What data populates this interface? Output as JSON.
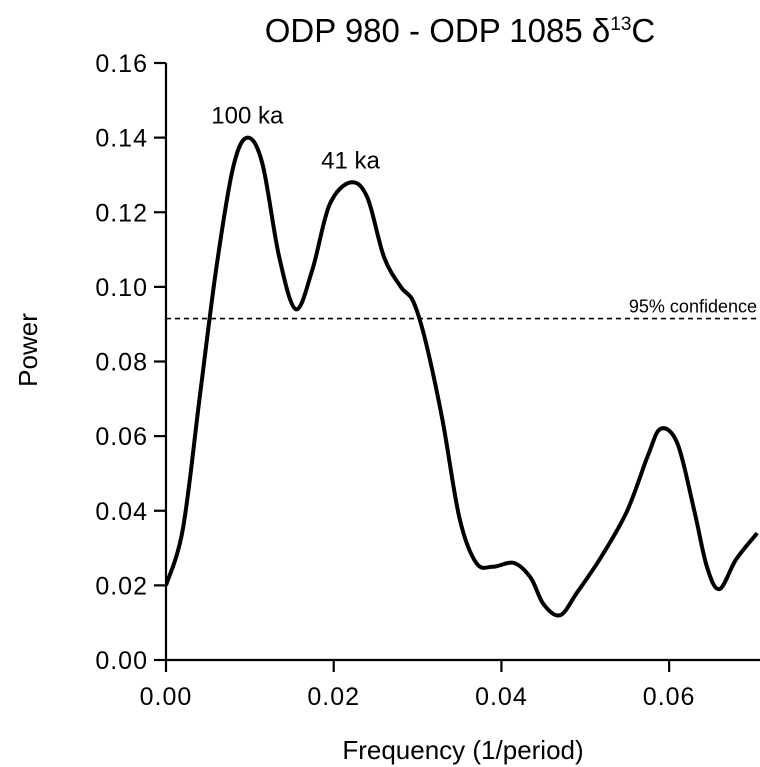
{
  "chart_data": {
    "type": "line",
    "title_main": "ODP 980 - ODP 1085 δ",
    "title_sup": "13",
    "title_end": "C",
    "xlabel": "Frequency (1/period)",
    "ylabel": "Power",
    "xlim": [
      0,
      0.07
    ],
    "ylim": [
      0,
      0.16
    ],
    "x_ticks": [
      0.0,
      0.02,
      0.04,
      0.06
    ],
    "x_tick_labels": [
      "0.00",
      "0.02",
      "0.04",
      "0.06"
    ],
    "y_ticks": [
      0.0,
      0.02,
      0.04,
      0.06,
      0.08,
      0.1,
      0.12,
      0.14,
      0.16
    ],
    "y_tick_labels": [
      "0.00",
      "0.02",
      "0.04",
      "0.06",
      "0.08",
      "0.10",
      "0.12",
      "0.14",
      "0.16"
    ],
    "confidence": {
      "label": "95% confidence",
      "value": 0.0915
    },
    "annotations": [
      {
        "text": "100 ka",
        "x": 0.0097,
        "y": 0.14
      },
      {
        "text": "41 ka",
        "x": 0.022,
        "y": 0.128
      }
    ],
    "grid": false,
    "series": [
      {
        "color": "#000000",
        "x": [
          0.0,
          0.002,
          0.004,
          0.006,
          0.008,
          0.0097,
          0.0115,
          0.0135,
          0.0155,
          0.0175,
          0.0195,
          0.022,
          0.024,
          0.026,
          0.028,
          0.0295,
          0.031,
          0.033,
          0.035,
          0.037,
          0.039,
          0.0415,
          0.0435,
          0.045,
          0.047,
          0.049,
          0.052,
          0.055,
          0.0575,
          0.059,
          0.061,
          0.063,
          0.0645,
          0.066,
          0.068,
          0.0705
        ],
        "y": [
          0.02,
          0.035,
          0.07,
          0.105,
          0.132,
          0.14,
          0.133,
          0.108,
          0.094,
          0.105,
          0.122,
          0.128,
          0.124,
          0.108,
          0.1,
          0.096,
          0.085,
          0.064,
          0.038,
          0.026,
          0.025,
          0.026,
          0.022,
          0.015,
          0.012,
          0.018,
          0.028,
          0.04,
          0.055,
          0.062,
          0.058,
          0.04,
          0.025,
          0.019,
          0.027,
          0.034
        ]
      }
    ]
  }
}
